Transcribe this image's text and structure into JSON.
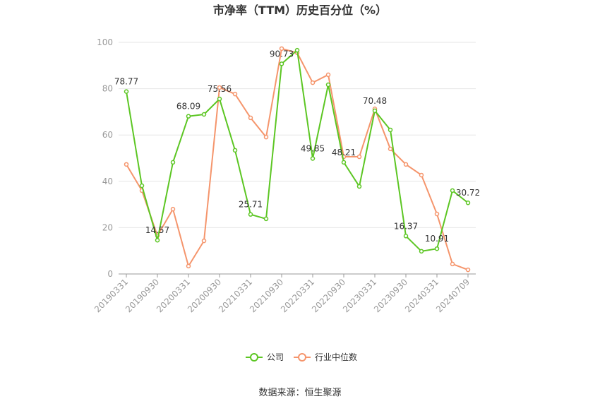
{
  "chart_data": {
    "type": "line",
    "title": "市净率（TTM）历史百分位（%）",
    "source": "数据来源：恒生聚源",
    "categories": [
      "20190331",
      null,
      "20190930",
      null,
      "20200331",
      null,
      "20200930",
      null,
      "20210331",
      null,
      "20210930",
      null,
      "20220331",
      null,
      "20220930",
      null,
      "20230331",
      null,
      "20230930",
      null,
      "20240331",
      null,
      "20240709"
    ],
    "series": [
      {
        "name": "公司",
        "color": "#5cc623",
        "values": [
          78.77,
          38.1,
          14.57,
          48.2,
          68.09,
          68.9,
          75.56,
          53.4,
          25.71,
          23.8,
          90.73,
          96.6,
          49.85,
          81.7,
          48.21,
          37.8,
          70.48,
          62.2,
          16.37,
          9.8,
          10.91,
          36,
          30.72
        ],
        "value_labels": [
          "78.77",
          null,
          "14.57",
          null,
          "68.09",
          null,
          "75.56",
          null,
          "25.71",
          null,
          "90.73",
          null,
          "49.85",
          null,
          "48.21",
          null,
          "70.48",
          null,
          "16.37",
          null,
          "10.91",
          null,
          "30.72"
        ]
      },
      {
        "name": "行业中位数",
        "color": "#f5956c",
        "values": [
          47.3,
          36,
          16.5,
          28,
          3.4,
          14.3,
          80.5,
          77.7,
          67.4,
          59.1,
          97.3,
          95.5,
          82.6,
          86,
          50.6,
          50.6,
          71.3,
          54,
          47.3,
          42.7,
          25.9,
          4.3,
          1.8
        ]
      }
    ],
    "ylim": [
      0,
      100
    ],
    "yticks": [
      0,
      20,
      40,
      60,
      80,
      100
    ],
    "grid": true,
    "legend": "bottom"
  }
}
